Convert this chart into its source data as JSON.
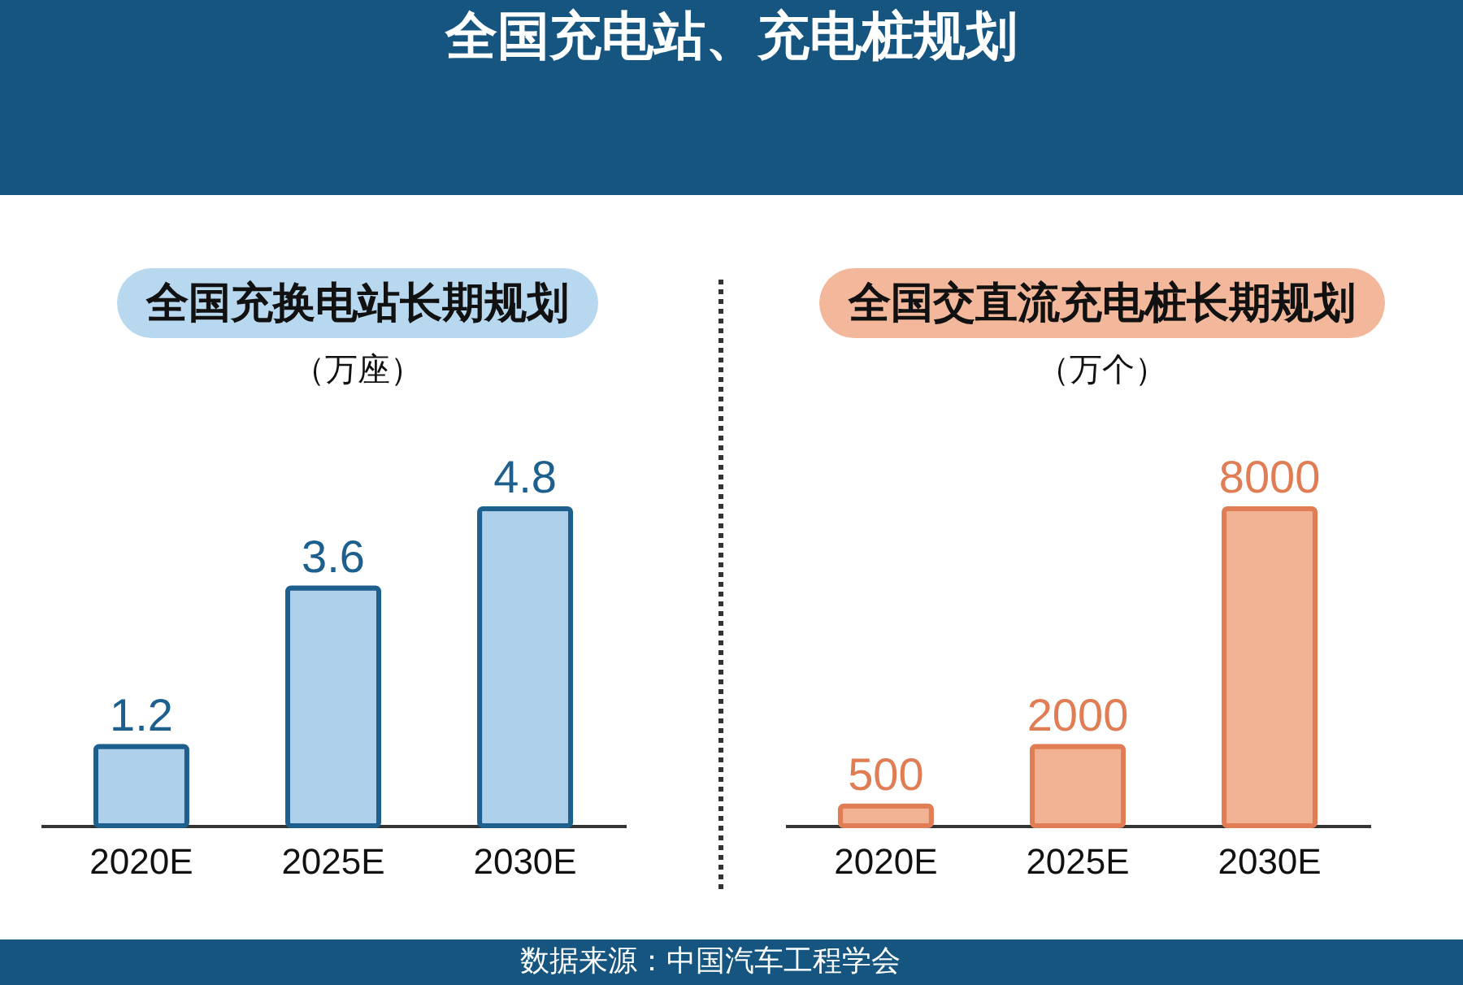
{
  "chart_data": [
    {
      "type": "bar",
      "title": "全国充换电站长期规划",
      "subtitle": "（万座）",
      "annotations": [
        "全国充电站、充电桩规划"
      ],
      "categories": [
        "2020E",
        "2025E",
        "2030E"
      ],
      "series": [
        {
          "color": "#aed0ea",
          "values": [
            1.2,
            3.6,
            4.8
          ]
        }
      ],
      "data_labels": true,
      "tick_labels": "x",
      "legend": false,
      "grid": false
    },
    {
      "type": "bar",
      "title": "全国交直流充电桩长期规划",
      "subtitle": "（万个）",
      "annotations": [
        "数据来源：中国汽车工程学会"
      ],
      "categories": [
        "2020E",
        "2025E",
        "2030E"
      ],
      "series": [
        {
          "color": "#f1b393",
          "values": [
            500,
            2000,
            8000
          ]
        }
      ],
      "data_labels": true,
      "tick_labels": "x",
      "legend": false,
      "grid": false
    }
  ]
}
